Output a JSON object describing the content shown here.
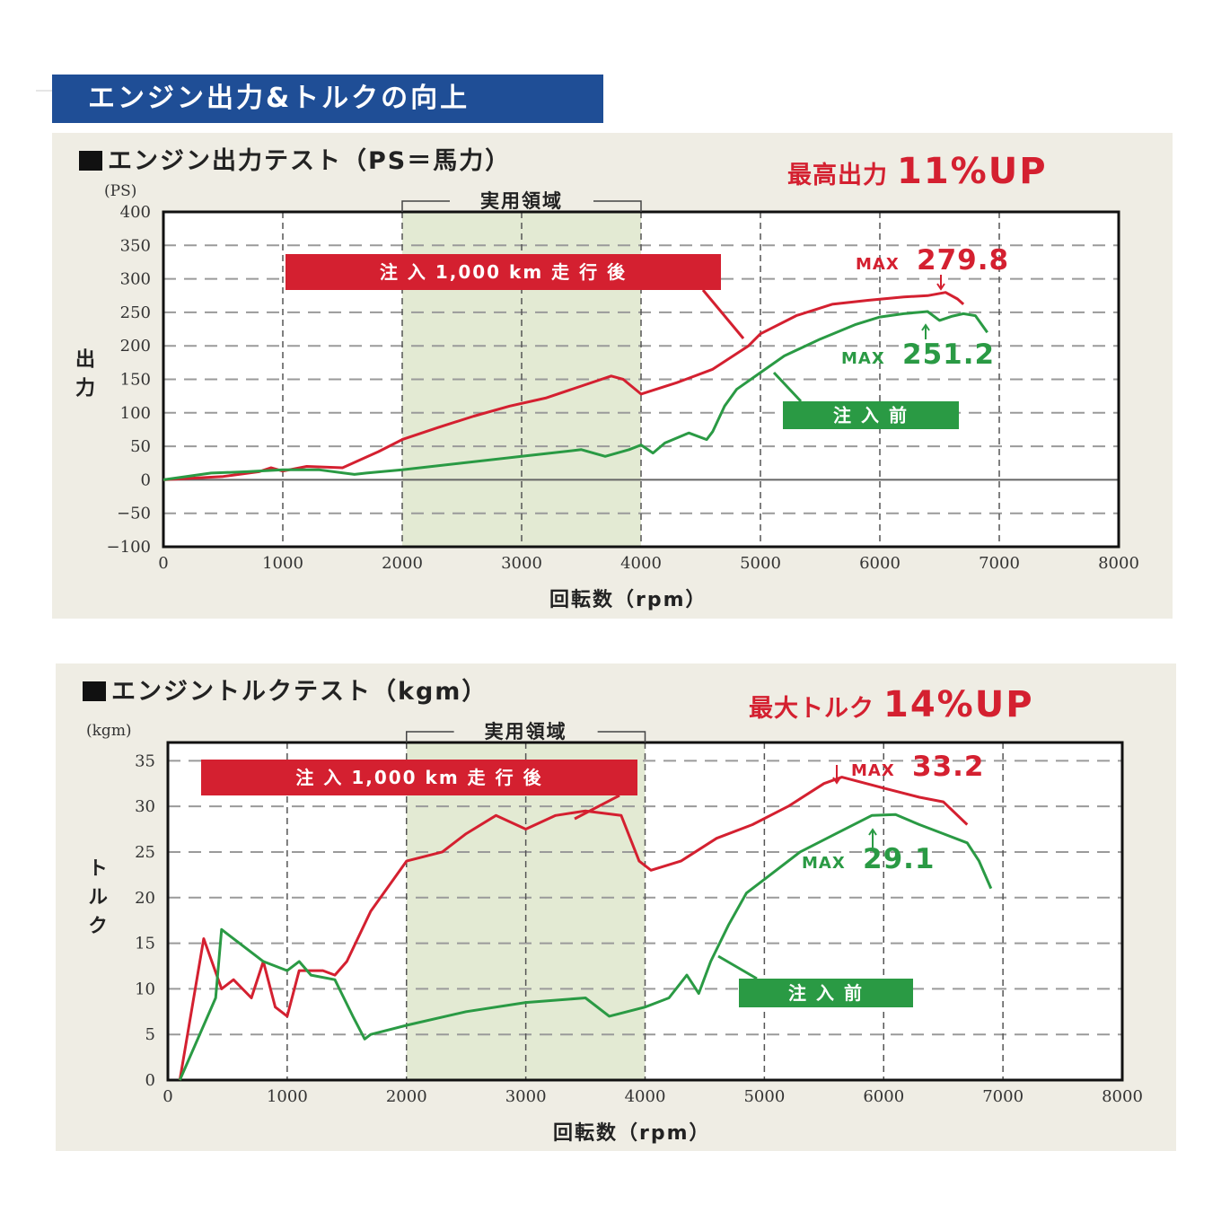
{
  "header": {
    "title": "エンジン出力&トルクの向上"
  },
  "colors": {
    "after": "#d42030",
    "before": "#2a9a44",
    "header": "#1f4e96",
    "panel": "#efede4",
    "band": "#e3ead3"
  },
  "power_panel": {
    "title": "エンジン出力テスト（PS＝馬力）",
    "headline_label": "最高出力",
    "headline_value": "11%UP",
    "unit": "(PS)",
    "ylabel": "出力",
    "xlabel": "回転数（rpm）",
    "band_label": "実用領域",
    "after_label": "注 入 1,000 km 走 行 後",
    "before_label": "注 入 前",
    "max_after": {
      "prefix": "MAX",
      "value": "279.8"
    },
    "max_before": {
      "prefix": "MAX",
      "value": "251.2"
    }
  },
  "torque_panel": {
    "title": "エンジントルクテスト（kgm）",
    "headline_label": "最大トルク",
    "headline_value": "14%UP",
    "unit": "(kgm)",
    "ylabel": "トルク",
    "xlabel": "回転数（rpm）",
    "band_label": "実用領域",
    "after_label": "注 入 1,000 km 走 行 後",
    "before_label": "注 入 前",
    "max_after": {
      "prefix": "MAX",
      "value": "33.2"
    },
    "max_before": {
      "prefix": "MAX",
      "value": "29.1"
    }
  },
  "chart_data": [
    {
      "type": "line",
      "title": "エンジン出力テスト（PS＝馬力）",
      "xlabel": "回転数（rpm）",
      "ylabel": "出力",
      "y_unit": "PS",
      "xlim": [
        0,
        8000
      ],
      "ylim": [
        -100,
        400
      ],
      "xticks": [
        0,
        1000,
        2000,
        3000,
        4000,
        5000,
        6000,
        7000,
        8000
      ],
      "yticks": [
        400,
        350,
        300,
        250,
        200,
        150,
        100,
        50,
        0,
        -50,
        -100
      ],
      "grid": true,
      "highlight_band": {
        "label": "実用領域",
        "x": [
          2000,
          4000
        ]
      },
      "series": [
        {
          "name": "注 入 1,000 km 走 行 後",
          "color": "#d42030",
          "x": [
            0,
            500,
            800,
            900,
            1000,
            1200,
            1500,
            1800,
            2000,
            2300,
            2600,
            2900,
            3200,
            3500,
            3750,
            3850,
            4000,
            4300,
            4600,
            4900,
            5000,
            5300,
            5600,
            5900,
            6200,
            6400,
            6550,
            6650,
            6700
          ],
          "y": [
            0,
            5,
            12,
            18,
            13,
            20,
            18,
            42,
            60,
            78,
            95,
            110,
            122,
            140,
            155,
            150,
            128,
            145,
            165,
            200,
            218,
            245,
            262,
            268,
            273,
            275,
            279.8,
            270,
            262
          ]
        },
        {
          "name": "注 入 前",
          "color": "#2a9a44",
          "x": [
            0,
            400,
            700,
            1000,
            1300,
            1600,
            1700,
            2000,
            2500,
            3000,
            3500,
            3700,
            3900,
            4000,
            4100,
            4200,
            4400,
            4550,
            4600,
            4700,
            4800,
            5000,
            5200,
            5500,
            5800,
            6000,
            6200,
            6400,
            6500,
            6600,
            6700,
            6800,
            6900
          ],
          "y": [
            0,
            10,
            12,
            15,
            15,
            8,
            10,
            15,
            25,
            35,
            45,
            35,
            45,
            52,
            40,
            55,
            70,
            60,
            72,
            110,
            135,
            160,
            185,
            210,
            232,
            243,
            248,
            251.2,
            238,
            244,
            248,
            245,
            220
          ]
        }
      ]
    },
    {
      "type": "line",
      "title": "エンジントルクテスト（kgm）",
      "xlabel": "回転数（rpm）",
      "ylabel": "トルク",
      "y_unit": "kgm",
      "xlim": [
        0,
        8000
      ],
      "ylim": [
        0,
        37
      ],
      "xticks": [
        0,
        1000,
        2000,
        3000,
        4000,
        5000,
        6000,
        7000,
        8000
      ],
      "yticks": [
        35,
        30,
        25,
        20,
        15,
        10,
        5,
        0
      ],
      "grid": true,
      "highlight_band": {
        "label": "実用領域",
        "x": [
          2000,
          4000
        ]
      },
      "series": [
        {
          "name": "注 入 1,000 km 走 行 後",
          "color": "#d42030",
          "x": [
            100,
            300,
            450,
            550,
            700,
            800,
            900,
            1000,
            1100,
            1300,
            1400,
            1500,
            1700,
            2000,
            2300,
            2500,
            2750,
            3000,
            3250,
            3500,
            3800,
            3950,
            4050,
            4300,
            4600,
            4900,
            5200,
            5500,
            5650,
            6000,
            6300,
            6500,
            6700
          ],
          "y": [
            0,
            15.5,
            10,
            11,
            9,
            13,
            8,
            7,
            12,
            12,
            11.5,
            13,
            18.5,
            24,
            25,
            27,
            29,
            27.5,
            29,
            29.5,
            29,
            24,
            23,
            24,
            26.5,
            28,
            30,
            32.5,
            33.2,
            32,
            31,
            30.5,
            28
          ]
        },
        {
          "name": "注 入 前",
          "color": "#2a9a44",
          "x": [
            100,
            400,
            450,
            600,
            800,
            1000,
            1100,
            1200,
            1400,
            1550,
            1650,
            1700,
            2000,
            2500,
            3000,
            3500,
            3700,
            3850,
            4000,
            4100,
            4200,
            4350,
            4450,
            4550,
            4700,
            4850,
            5000,
            5300,
            5600,
            5900,
            6100,
            6300,
            6500,
            6700,
            6800,
            6900
          ],
          "y": [
            0,
            9,
            16.5,
            15,
            13,
            12,
            13,
            11.5,
            11,
            7,
            4.5,
            5,
            6,
            7.5,
            8.5,
            9,
            7,
            7.5,
            8,
            8.5,
            9,
            11.5,
            9.5,
            13,
            17,
            20.5,
            22,
            25,
            27,
            29,
            29.1,
            28,
            27,
            26,
            24,
            21
          ]
        }
      ]
    }
  ]
}
